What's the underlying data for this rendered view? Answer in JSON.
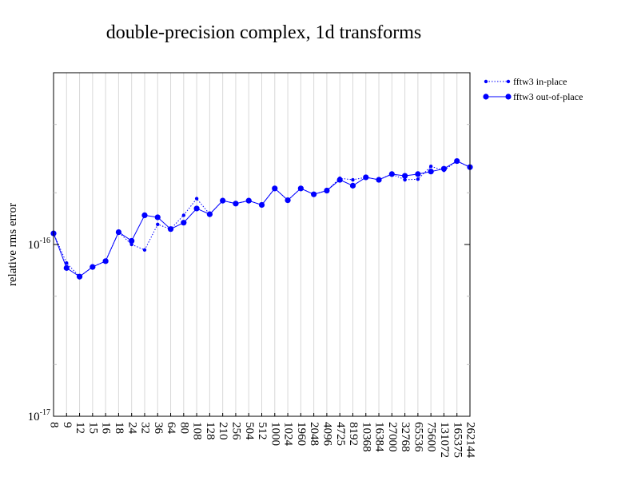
{
  "chart_data": {
    "type": "line",
    "title": "double-precision complex, 1d transforms",
    "ylabel": "relative rms error",
    "xlabel": "",
    "yscale": "log",
    "ylim": [
      1e-17,
      1e-15
    ],
    "y_tick_labels": [
      {
        "value": 1e-17,
        "base": "10",
        "exp": "-17"
      },
      {
        "value": 1e-16,
        "base": "10",
        "exp": "-16"
      }
    ],
    "y_minor_ticks": [
      2e-17,
      5e-17,
      2e-16,
      5e-16
    ],
    "grid": "vertical",
    "legend_position": "top-right, outside plot",
    "categories": [
      "8",
      "9",
      "12",
      "15",
      "16",
      "18",
      "24",
      "32",
      "36",
      "64",
      "80",
      "108",
      "128",
      "210",
      "256",
      "504",
      "512",
      "1000",
      "1024",
      "1960",
      "2048",
      "4096",
      "4725",
      "8192",
      "10368",
      "16384",
      "27000",
      "32768",
      "65536",
      "75600",
      "131072",
      "165375",
      "262144"
    ],
    "series": [
      {
        "name": "fftw3 in-place",
        "color": "#0000ff",
        "line_style": "dotted",
        "marker_size": "small",
        "values": [
          1.16e-16,
          7.8e-17,
          6.5e-17,
          7.4e-17,
          8e-17,
          1.18e-16,
          1e-16,
          9.3e-17,
          1.31e-16,
          1.23e-16,
          1.48e-16,
          1.85e-16,
          1.5e-16,
          1.8e-16,
          1.73e-16,
          1.8e-16,
          1.7e-16,
          2.12e-16,
          1.81e-16,
          2.12e-16,
          1.96e-16,
          2.06e-16,
          2.43e-16,
          2.38e-16,
          2.46e-16,
          2.38e-16,
          2.57e-16,
          2.38e-16,
          2.4e-16,
          2.85e-16,
          2.7e-16,
          3.06e-16,
          2.82e-16
        ]
      },
      {
        "name": "fftw3 out-of-place",
        "color": "#0000ff",
        "line_style": "solid",
        "marker_size": "large",
        "values": [
          1.16e-16,
          7.3e-17,
          6.5e-17,
          7.4e-17,
          8e-17,
          1.18e-16,
          1.05e-16,
          1.48e-16,
          1.44e-16,
          1.23e-16,
          1.34e-16,
          1.62e-16,
          1.5e-16,
          1.8e-16,
          1.73e-16,
          1.8e-16,
          1.7e-16,
          2.12e-16,
          1.81e-16,
          2.12e-16,
          1.96e-16,
          2.06e-16,
          2.38e-16,
          2.2e-16,
          2.46e-16,
          2.38e-16,
          2.57e-16,
          2.51e-16,
          2.57e-16,
          2.66e-16,
          2.76e-16,
          3.06e-16,
          2.82e-16
        ]
      }
    ]
  }
}
